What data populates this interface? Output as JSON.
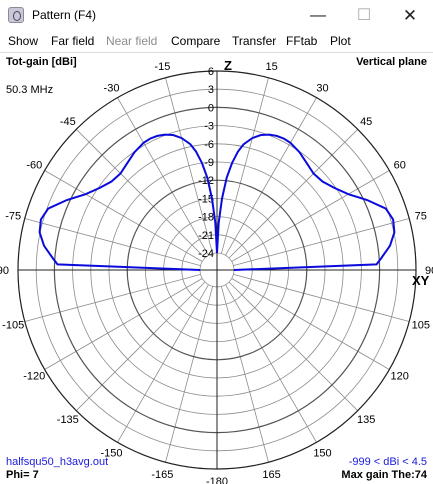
{
  "window": {
    "title": "Pattern   (F4)",
    "min_glyph": "—",
    "max_glyph": "☐",
    "close_glyph": "✕"
  },
  "menu": [
    {
      "label": "Show",
      "enabled": true
    },
    {
      "label": "Far field",
      "enabled": true
    },
    {
      "label": "Near field",
      "enabled": false
    },
    {
      "label": "Compare",
      "enabled": true
    },
    {
      "label": "Transfer",
      "enabled": true
    },
    {
      "label": "FFtab",
      "enabled": true
    },
    {
      "label": "Plot",
      "enabled": true
    }
  ],
  "plot": {
    "gain_type": "Tot-gain [dBi]",
    "plane": "Vertical plane",
    "frequency": "50.3 MHz",
    "filename": "halfsqu50_h3avg.out",
    "range": "-999 < dBi < 4.5",
    "phi": "Phi= 7",
    "max_gain": "Max gain The:74",
    "axis_z": "Z",
    "axis_xy": "XY",
    "trace_color": "#0a0adc",
    "grid_color": "#8c8c8c"
  },
  "chart_data": {
    "type": "polar",
    "radial_unit": "dBi",
    "radial_ticks": [
      "6",
      "3",
      "0",
      "-3",
      "-6",
      "-9",
      "-12",
      "-15",
      "-18",
      "-21",
      "-24"
    ],
    "angle_labels_top": [
      "-15",
      "15",
      "-30",
      "30",
      "-45",
      "45",
      "-60",
      "60",
      "-75",
      "75",
      "-90",
      "90"
    ],
    "angle_labels_bottom": [
      "-105",
      "105",
      "-120",
      "120",
      "-135",
      "135",
      "-150",
      "150",
      "-165",
      "165",
      "-180"
    ],
    "series": [
      {
        "theta_deg": [
          0,
          2,
          4,
          6,
          8,
          10,
          12,
          15,
          18,
          21,
          24,
          27,
          30,
          35,
          40,
          45,
          50,
          55,
          60,
          65,
          70,
          74,
          78,
          82,
          86,
          88,
          90
        ],
        "gain_dbi": [
          -24,
          -19,
          -15,
          -11.5,
          -9,
          -7,
          -5.6,
          -4.3,
          -3.4,
          -2.9,
          -2.6,
          -2.5,
          -2.6,
          -3.1,
          -3.8,
          -4.3,
          -4.1,
          -3.2,
          -1.8,
          0.5,
          2.8,
          3.4,
          3.1,
          2.0,
          0.3,
          -0.5,
          -24
        ]
      }
    ]
  }
}
